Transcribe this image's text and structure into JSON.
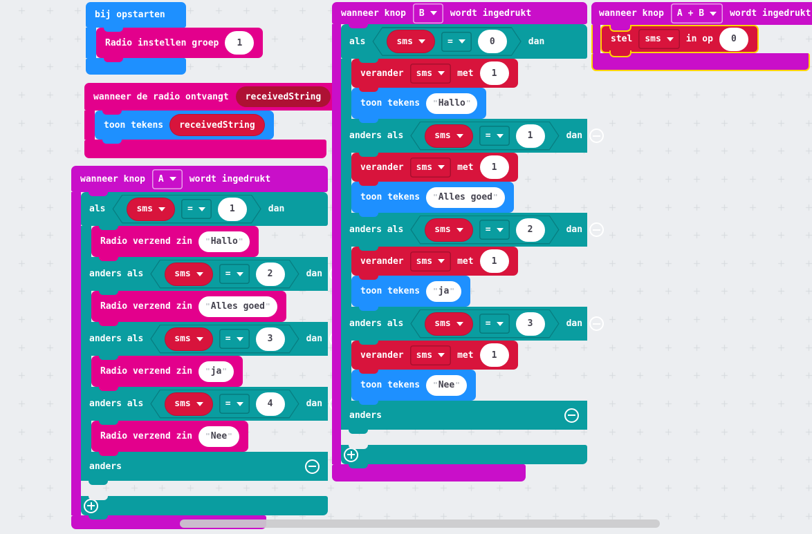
{
  "ui": {
    "quote": "\""
  },
  "colors": {
    "basic_blue": "#1e90ff",
    "radio_pink": "#e3008c",
    "input_magenta": "#c90fc9",
    "logic_teal": "#0a9da0",
    "variables_red": "#d8143c",
    "selection_yellow": "#ffd400"
  },
  "on_start": {
    "title": "bij opstarten",
    "radio_set_group": {
      "label": "Radio instellen groep",
      "value": "1"
    }
  },
  "radio_receive": {
    "title": "wanneer de radio ontvangt",
    "param": "receivedString",
    "show_string": {
      "label": "toon tekens",
      "var": "receivedString"
    }
  },
  "button_a": {
    "when_pre": "wanneer knop",
    "button": "A",
    "when_post": "wordt ingedrukt",
    "if_label": "als",
    "elseif_label": "anders als",
    "then_label": "dan",
    "else_label": "anders",
    "var": "sms",
    "op": "=",
    "clauses": [
      {
        "value": "1",
        "send_label": "Radio verzend zin",
        "send_text": "Hallo"
      },
      {
        "value": "2",
        "send_label": "Radio verzend zin",
        "send_text": "Alles goed"
      },
      {
        "value": "3",
        "send_label": "Radio verzend zin",
        "send_text": "ja"
      },
      {
        "value": "4",
        "send_label": "Radio verzend zin",
        "send_text": "Nee"
      }
    ]
  },
  "button_b": {
    "when_pre": "wanneer knop",
    "button": "B",
    "when_post": "wordt ingedrukt",
    "if_label": "als",
    "elseif_label": "anders als",
    "then_label": "dan",
    "else_label": "anders",
    "var": "sms",
    "op": "=",
    "change_label": "verander",
    "change_mid": "met",
    "change_value": "1",
    "show_label": "toon tekens",
    "clauses": [
      {
        "value": "0",
        "show_text": "Hallo"
      },
      {
        "value": "1",
        "show_text": "Alles goed"
      },
      {
        "value": "2",
        "show_text": "ja"
      },
      {
        "value": "3",
        "show_text": "Nee"
      }
    ]
  },
  "button_ab": {
    "when_pre": "wanneer knop",
    "button": "A + B",
    "when_post": "wordt ingedrukt",
    "set_label": "stel",
    "var": "sms",
    "set_mid": "in op",
    "value": "0"
  }
}
